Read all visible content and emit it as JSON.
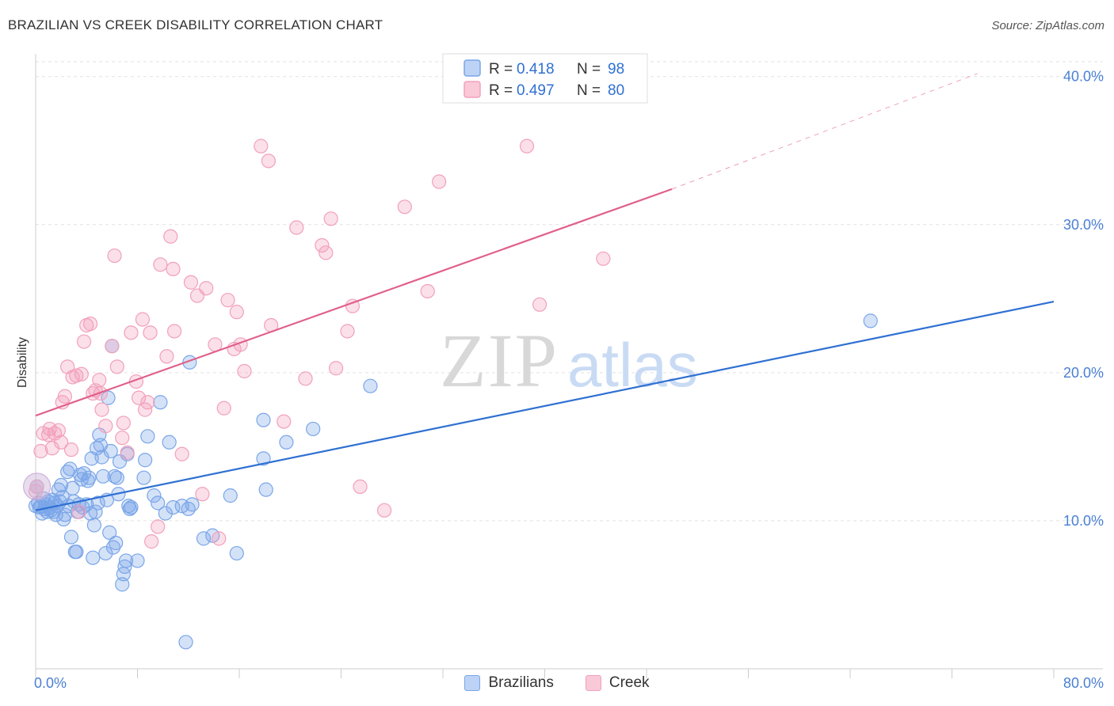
{
  "title": "BRAZILIAN VS CREEK DISABILITY CORRELATION CHART",
  "source": "Source: ZipAtlas.com",
  "watermark": {
    "zip": "ZIP",
    "atlas": "atlas"
  },
  "legend": {
    "r_label": "R =",
    "n_label": "N =",
    "rows": [
      {
        "r": "0.418",
        "n": "98"
      },
      {
        "r": "0.497",
        "n": "80"
      }
    ]
  },
  "chart_data": {
    "type": "scatter",
    "title": "BRAZILIAN VS CREEK DISABILITY CORRELATION CHART",
    "xlabel": "",
    "ylabel": "Disability",
    "xlim": [
      0,
      80
    ],
    "ylim": [
      0,
      41
    ],
    "x_tick_labels": [
      "0.0%",
      "80.0%"
    ],
    "y_ticks": [
      10,
      20,
      30,
      40
    ],
    "y_tick_labels": [
      "10.0%",
      "20.0%",
      "30.0%",
      "40.0%"
    ],
    "x_minor_ticks": [
      0,
      8,
      16,
      24,
      32,
      40,
      48,
      56,
      64,
      72,
      80
    ],
    "grid": true,
    "legend_position": "top-center",
    "series": [
      {
        "name": "Brazilians",
        "color": "#7aa6e8",
        "line_color": "#2f70d2",
        "trend": {
          "x0": 0,
          "y0": 10.7,
          "x1": 80,
          "y1": 24.8
        },
        "points": [
          [
            0.1,
            12.3
          ],
          [
            0.2,
            11.2
          ],
          [
            0.3,
            10.9
          ],
          [
            0.4,
            11.0
          ],
          [
            0.5,
            10.5
          ],
          [
            0.6,
            11.5
          ],
          [
            0.7,
            10.8
          ],
          [
            0.8,
            11.1
          ],
          [
            0.9,
            10.6
          ],
          [
            1.0,
            11.3
          ],
          [
            1.1,
            10.9
          ],
          [
            1.2,
            10.7
          ],
          [
            1.3,
            11.4
          ],
          [
            1.4,
            10.6
          ],
          [
            1.5,
            11.2
          ],
          [
            1.6,
            10.4
          ],
          [
            1.7,
            11.0
          ],
          [
            1.8,
            12.1
          ],
          [
            1.9,
            11.3
          ],
          [
            2.0,
            12.4
          ],
          [
            2.1,
            11.6
          ],
          [
            2.2,
            10.1
          ],
          [
            2.3,
            10.4
          ],
          [
            2.5,
            13.3
          ],
          [
            2.6,
            11.0
          ],
          [
            2.7,
            13.5
          ],
          [
            2.8,
            8.9
          ],
          [
            2.9,
            12.2
          ],
          [
            3.0,
            11.3
          ],
          [
            3.1,
            7.9
          ],
          [
            3.2,
            7.9
          ],
          [
            3.3,
            10.6
          ],
          [
            3.4,
            11.1
          ],
          [
            3.5,
            13.1
          ],
          [
            3.6,
            12.8
          ],
          [
            3.7,
            10.9
          ],
          [
            3.8,
            13.2
          ],
          [
            4.0,
            11.1
          ],
          [
            4.1,
            12.7
          ],
          [
            4.2,
            12.9
          ],
          [
            4.3,
            10.5
          ],
          [
            4.4,
            14.2
          ],
          [
            4.5,
            7.5
          ],
          [
            4.6,
            9.7
          ],
          [
            4.7,
            10.6
          ],
          [
            4.8,
            14.9
          ],
          [
            4.9,
            11.2
          ],
          [
            5.0,
            15.8
          ],
          [
            5.1,
            15.1
          ],
          [
            5.2,
            14.3
          ],
          [
            5.3,
            13.0
          ],
          [
            5.5,
            7.8
          ],
          [
            5.6,
            11.4
          ],
          [
            5.7,
            18.3
          ],
          [
            5.8,
            9.2
          ],
          [
            5.9,
            14.7
          ],
          [
            6.0,
            21.8
          ],
          [
            6.1,
            8.2
          ],
          [
            6.2,
            13.0
          ],
          [
            6.3,
            8.5
          ],
          [
            6.4,
            12.9
          ],
          [
            6.5,
            11.8
          ],
          [
            6.6,
            14.0
          ],
          [
            6.8,
            5.7
          ],
          [
            6.9,
            6.4
          ],
          [
            7.0,
            6.9
          ],
          [
            7.1,
            7.3
          ],
          [
            7.2,
            14.5
          ],
          [
            7.3,
            11.0
          ],
          [
            7.4,
            10.8
          ],
          [
            7.5,
            10.9
          ],
          [
            8.0,
            7.3
          ],
          [
            8.5,
            12.9
          ],
          [
            8.6,
            14.1
          ],
          [
            8.8,
            15.7
          ],
          [
            9.3,
            11.7
          ],
          [
            9.6,
            11.2
          ],
          [
            9.8,
            18.0
          ],
          [
            10.2,
            10.5
          ],
          [
            10.5,
            15.3
          ],
          [
            10.8,
            10.9
          ],
          [
            11.5,
            11.0
          ],
          [
            11.8,
            1.8
          ],
          [
            12.0,
            10.8
          ],
          [
            12.1,
            20.7
          ],
          [
            12.3,
            11.1
          ],
          [
            13.2,
            8.8
          ],
          [
            13.9,
            9.0
          ],
          [
            15.3,
            11.7
          ],
          [
            15.8,
            7.8
          ],
          [
            17.9,
            14.2
          ],
          [
            17.9,
            16.8
          ],
          [
            18.1,
            12.1
          ],
          [
            19.7,
            15.3
          ],
          [
            21.8,
            16.2
          ],
          [
            26.3,
            19.1
          ],
          [
            65.6,
            23.5
          ],
          [
            0.0,
            11.0
          ]
        ]
      },
      {
        "name": "Creek",
        "color": "#f2a0bb",
        "line_color": "#e0608a",
        "trend": {
          "x0": 0,
          "y0": 17.1,
          "x1": 50,
          "y1": 32.4
        },
        "trend_dashed": {
          "x0": 50,
          "y0": 32.4,
          "x1": 74,
          "y1": 40.2
        },
        "points": [
          [
            0.1,
            12.3
          ],
          [
            0.4,
            14.7
          ],
          [
            0.6,
            15.9
          ],
          [
            1.0,
            15.8
          ],
          [
            1.1,
            16.2
          ],
          [
            1.3,
            14.9
          ],
          [
            1.5,
            15.9
          ],
          [
            1.8,
            16.1
          ],
          [
            2.0,
            15.3
          ],
          [
            2.1,
            18.0
          ],
          [
            2.3,
            18.4
          ],
          [
            2.5,
            20.4
          ],
          [
            2.8,
            14.8
          ],
          [
            2.9,
            19.7
          ],
          [
            3.2,
            19.8
          ],
          [
            3.4,
            10.6
          ],
          [
            3.6,
            19.9
          ],
          [
            3.8,
            22.1
          ],
          [
            4.0,
            23.2
          ],
          [
            4.3,
            23.3
          ],
          [
            4.5,
            18.6
          ],
          [
            4.7,
            18.8
          ],
          [
            5.0,
            19.5
          ],
          [
            5.1,
            18.6
          ],
          [
            5.5,
            16.4
          ],
          [
            6.0,
            21.8
          ],
          [
            6.2,
            27.9
          ],
          [
            6.4,
            20.4
          ],
          [
            6.8,
            15.6
          ],
          [
            6.9,
            16.6
          ],
          [
            7.2,
            14.6
          ],
          [
            7.5,
            22.7
          ],
          [
            7.9,
            19.4
          ],
          [
            8.1,
            18.3
          ],
          [
            8.4,
            23.6
          ],
          [
            8.6,
            17.5
          ],
          [
            8.8,
            18.0
          ],
          [
            9.0,
            22.7
          ],
          [
            9.1,
            8.6
          ],
          [
            9.6,
            9.6
          ],
          [
            9.8,
            27.3
          ],
          [
            10.3,
            21.1
          ],
          [
            10.6,
            29.2
          ],
          [
            10.8,
            27.0
          ],
          [
            10.9,
            22.8
          ],
          [
            11.5,
            14.5
          ],
          [
            12.2,
            26.1
          ],
          [
            12.7,
            25.2
          ],
          [
            13.1,
            11.8
          ],
          [
            13.4,
            25.7
          ],
          [
            14.1,
            21.9
          ],
          [
            14.4,
            8.8
          ],
          [
            14.8,
            17.6
          ],
          [
            15.1,
            24.9
          ],
          [
            15.6,
            21.6
          ],
          [
            15.8,
            24.1
          ],
          [
            16.1,
            21.9
          ],
          [
            16.4,
            20.1
          ],
          [
            17.7,
            35.3
          ],
          [
            18.3,
            34.3
          ],
          [
            18.5,
            23.2
          ],
          [
            19.5,
            16.7
          ],
          [
            20.5,
            29.8
          ],
          [
            21.2,
            19.6
          ],
          [
            22.5,
            28.6
          ],
          [
            23.2,
            30.4
          ],
          [
            22.8,
            28.1
          ],
          [
            23.6,
            20.3
          ],
          [
            24.5,
            22.8
          ],
          [
            24.9,
            24.5
          ],
          [
            25.5,
            12.3
          ],
          [
            27.4,
            10.7
          ],
          [
            29.0,
            31.2
          ],
          [
            30.8,
            25.5
          ],
          [
            31.7,
            32.9
          ],
          [
            38.6,
            35.3
          ],
          [
            39.6,
            24.6
          ],
          [
            44.6,
            27.7
          ],
          [
            0.0,
            12.0
          ],
          [
            5.2,
            17.5
          ]
        ]
      }
    ]
  }
}
